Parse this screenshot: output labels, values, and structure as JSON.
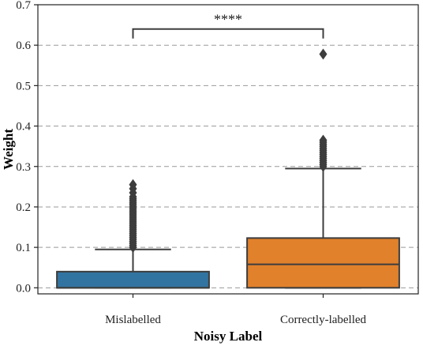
{
  "chart_data": {
    "type": "box",
    "title": "",
    "xlabel": "Noisy Label",
    "ylabel": "Weight",
    "ylim": [
      -0.015,
      0.7
    ],
    "yticks": [
      0.0,
      0.1,
      0.2,
      0.3,
      0.4,
      0.5,
      0.6,
      0.7
    ],
    "ytick_labels": [
      "0.0",
      "0.1",
      "0.2",
      "0.3",
      "0.4",
      "0.5",
      "0.6",
      "0.7"
    ],
    "grid": "horizontal dashed",
    "categories": [
      "Mislabelled",
      "Correctly-labelled"
    ],
    "boxes": [
      {
        "category": "Mislabelled",
        "color": "#3274a1",
        "whisker_low": 0.0,
        "q1": 0.0,
        "median": 0.0,
        "q3": 0.04,
        "whisker_high": 0.095,
        "outliers": [
          0.1,
          0.105,
          0.11,
          0.115,
          0.12,
          0.125,
          0.13,
          0.135,
          0.14,
          0.145,
          0.15,
          0.155,
          0.16,
          0.165,
          0.17,
          0.175,
          0.18,
          0.185,
          0.19,
          0.195,
          0.2,
          0.205,
          0.21,
          0.215,
          0.22,
          0.225,
          0.235,
          0.245,
          0.255
        ]
      },
      {
        "category": "Correctly-labelled",
        "color": "#e1812c",
        "whisker_low": 0.0,
        "q1": 0.0,
        "median": 0.058,
        "q3": 0.123,
        "whisker_high": 0.295,
        "outliers": [
          0.3,
          0.305,
          0.31,
          0.315,
          0.32,
          0.325,
          0.33,
          0.335,
          0.34,
          0.345,
          0.35,
          0.355,
          0.36,
          0.365,
          0.578
        ]
      }
    ],
    "annotations": [
      {
        "text": "****",
        "between": [
          "Mislabelled",
          "Correctly-labelled"
        ],
        "y": 0.64
      }
    ]
  }
}
